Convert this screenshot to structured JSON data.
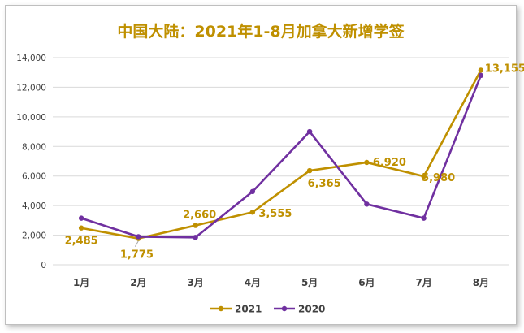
{
  "chart_data": {
    "type": "line",
    "title": "中国大陆：2021年1-8月加拿大新增学签",
    "categories": [
      "1月",
      "2月",
      "3月",
      "4月",
      "5月",
      "6月",
      "7月",
      "8月"
    ],
    "series": [
      {
        "name": "2021",
        "color": "#BF9000",
        "values": [
          2485,
          1775,
          2660,
          3555,
          6365,
          6920,
          5980,
          13155
        ],
        "labels": [
          "2,485",
          "1,775",
          "2,660",
          "3,555",
          "6,365",
          "6,920",
          "5,980",
          "13,155"
        ]
      },
      {
        "name": "2020",
        "color": "#7030A0",
        "values": [
          3150,
          1900,
          1850,
          4950,
          9000,
          4100,
          3150,
          12800
        ]
      }
    ],
    "ylim": [
      0,
      14000
    ],
    "yticks": [
      "0",
      "2,000",
      "4,000",
      "6,000",
      "8,000",
      "10,000",
      "12,000",
      "14,000"
    ],
    "ytick_values": [
      0,
      2000,
      4000,
      6000,
      8000,
      10000,
      12000,
      14000
    ],
    "grid": true,
    "legend": "bottom-center",
    "title_color": "#BF9000"
  }
}
